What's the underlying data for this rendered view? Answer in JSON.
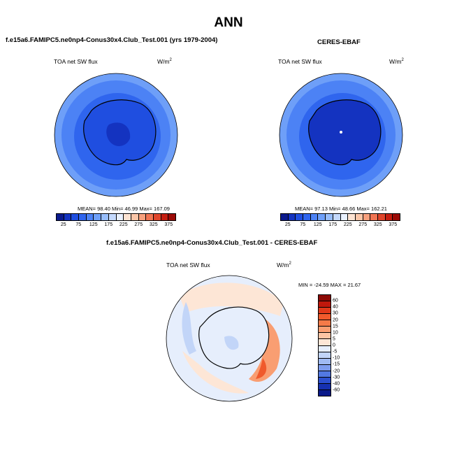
{
  "main_title": "ANN",
  "panels": {
    "model": {
      "title": "f.e15a6.FAMIPC5.ne0np4-Conus30x4.Club_Test.001 (yrs 1979-2004)",
      "variable": "TOA net SW flux",
      "units": "W/m",
      "units_exp": "2",
      "stats": "MEAN= 98.40  Min= 46.99  Max= 167.09"
    },
    "obs": {
      "title": "CERES-EBAF",
      "variable": "TOA net SW flux",
      "units": "W/m",
      "units_exp": "2",
      "stats": "MEAN= 97.13  Min= 48.66  Max= 162.21"
    },
    "diff": {
      "title": "f.e15a6.FAMIPC5.ne0np4-Conus30x4.Club_Test.001 - CERES-EBAF",
      "variable": "TOA net SW flux",
      "units": "W/m",
      "units_exp": "2",
      "stats": "MIN = -24.59  MAX =  21.67"
    }
  },
  "colorbar_abs": {
    "labels": [
      "25",
      "75",
      "125",
      "175",
      "225",
      "275",
      "325",
      "375"
    ],
    "colors": [
      "#0b1a8c",
      "#1433c0",
      "#1f4ee0",
      "#2f65ee",
      "#4c82f5",
      "#6e9ff8",
      "#97bdfb",
      "#c4d9fd",
      "#e9f1ff",
      "#fde3d2",
      "#fbc6a8",
      "#f7a07d",
      "#f07452",
      "#df452b",
      "#c41d10",
      "#9b0a06"
    ]
  },
  "colorbar_diff": {
    "labels": [
      "60",
      "40",
      "30",
      "20",
      "15",
      "10",
      "5",
      "0",
      "-5",
      "-10",
      "-15",
      "-20",
      "-30",
      "-40",
      "-60"
    ],
    "colors": [
      "#8c0a05",
      "#c0180c",
      "#e0391a",
      "#f05a2c",
      "#f57a48",
      "#f99e72",
      "#fcc4a4",
      "#fde6d6",
      "#e6eefc",
      "#c2d5f8",
      "#9fbaf2",
      "#7d9ced",
      "#5278e2",
      "#2c4fcf",
      "#1630b0",
      "#0a1a8a"
    ]
  }
}
